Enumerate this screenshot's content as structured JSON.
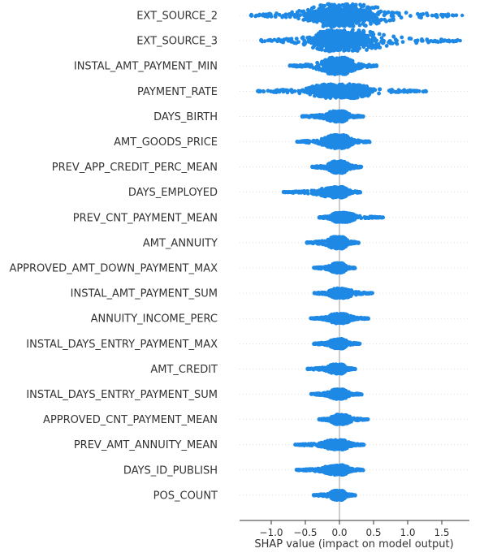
{
  "chart_data": {
    "type": "beeswarm",
    "xlabel": "SHAP value (impact on model output)",
    "xlim": [
      -1.5,
      1.9
    ],
    "xticks": [
      {
        "value": -1.0,
        "label": "−1.0"
      },
      {
        "value": -0.5,
        "label": "−0.5"
      },
      {
        "value": 0.0,
        "label": "0.0"
      },
      {
        "value": 0.5,
        "label": "0.5"
      },
      {
        "value": 1.0,
        "label": "1.0"
      },
      {
        "value": 1.5,
        "label": "1.5"
      }
    ],
    "color": "#1e88e5",
    "features": [
      {
        "name": "EXT_SOURCE_2",
        "min": -1.3,
        "max": 1.8,
        "spread": 0.95,
        "lo": [
          -1.3,
          -1.2
        ],
        "hi": [
          1.6,
          1.8
        ]
      },
      {
        "name": "EXT_SOURCE_3",
        "min": -1.15,
        "max": 1.77,
        "spread": 0.9,
        "lo": [
          -1.15
        ],
        "hi": [
          1.6,
          1.77
        ]
      },
      {
        "name": "INSTAL_AMT_PAYMENT_MIN",
        "min": -0.73,
        "max": 0.55,
        "spread": 0.7,
        "lo": [
          -0.73
        ],
        "hi": []
      },
      {
        "name": "PAYMENT_RATE",
        "min": -1.2,
        "max": 1.27,
        "spread": 0.6,
        "lo": [
          -1.2,
          -1.12
        ],
        "hi": [
          1.27
        ]
      },
      {
        "name": "DAYS_BIRTH",
        "min": -0.55,
        "max": 0.35,
        "spread": 0.45,
        "lo": [],
        "hi": []
      },
      {
        "name": "AMT_GOODS_PRICE",
        "min": -0.63,
        "max": 0.45,
        "spread": 0.55,
        "lo": [],
        "hi": []
      },
      {
        "name": "PREV_APP_CREDIT_PERC_MEAN",
        "min": -0.4,
        "max": 0.33,
        "spread": 0.5,
        "lo": [],
        "hi": []
      },
      {
        "name": "DAYS_EMPLOYED",
        "min": -0.82,
        "max": 0.31,
        "spread": 0.45,
        "lo": [
          -0.82,
          -0.78
        ],
        "hi": []
      },
      {
        "name": "PREV_CNT_PAYMENT_MEAN",
        "min": -0.3,
        "max": 0.64,
        "spread": 0.4,
        "lo": [],
        "hi": [
          0.64
        ]
      },
      {
        "name": "AMT_ANNUITY",
        "min": -0.48,
        "max": 0.28,
        "spread": 0.5,
        "lo": [],
        "hi": []
      },
      {
        "name": "APPROVED_AMT_DOWN_PAYMENT_MAX",
        "min": -0.38,
        "max": 0.23,
        "spread": 0.4,
        "lo": [],
        "hi": []
      },
      {
        "name": "INSTAL_AMT_PAYMENT_SUM",
        "min": -0.37,
        "max": 0.5,
        "spread": 0.4,
        "lo": [],
        "hi": []
      },
      {
        "name": "ANNUITY_INCOME_PERC",
        "min": -0.42,
        "max": 0.43,
        "spread": 0.4,
        "lo": [],
        "hi": []
      },
      {
        "name": "INSTAL_DAYS_ENTRY_PAYMENT_MAX",
        "min": -0.38,
        "max": 0.3,
        "spread": 0.4,
        "lo": [],
        "hi": []
      },
      {
        "name": "AMT_CREDIT",
        "min": -0.47,
        "max": 0.23,
        "spread": 0.4,
        "lo": [],
        "hi": []
      },
      {
        "name": "INSTAL_DAYS_ENTRY_PAYMENT_SUM",
        "min": -0.42,
        "max": 0.33,
        "spread": 0.4,
        "lo": [],
        "hi": []
      },
      {
        "name": "APPROVED_CNT_PAYMENT_MEAN",
        "min": -0.3,
        "max": 0.43,
        "spread": 0.4,
        "lo": [],
        "hi": []
      },
      {
        "name": "PREV_AMT_ANNUITY_MEAN",
        "min": -0.65,
        "max": 0.36,
        "spread": 0.4,
        "lo": [
          -0.65
        ],
        "hi": [
          0.36
        ]
      },
      {
        "name": "DAYS_ID_PUBLISH",
        "min": -0.63,
        "max": 0.36,
        "spread": 0.4,
        "lo": [],
        "hi": []
      },
      {
        "name": "POS_COUNT",
        "min": -0.38,
        "max": 0.23,
        "spread": 0.4,
        "lo": [],
        "hi": []
      }
    ]
  }
}
